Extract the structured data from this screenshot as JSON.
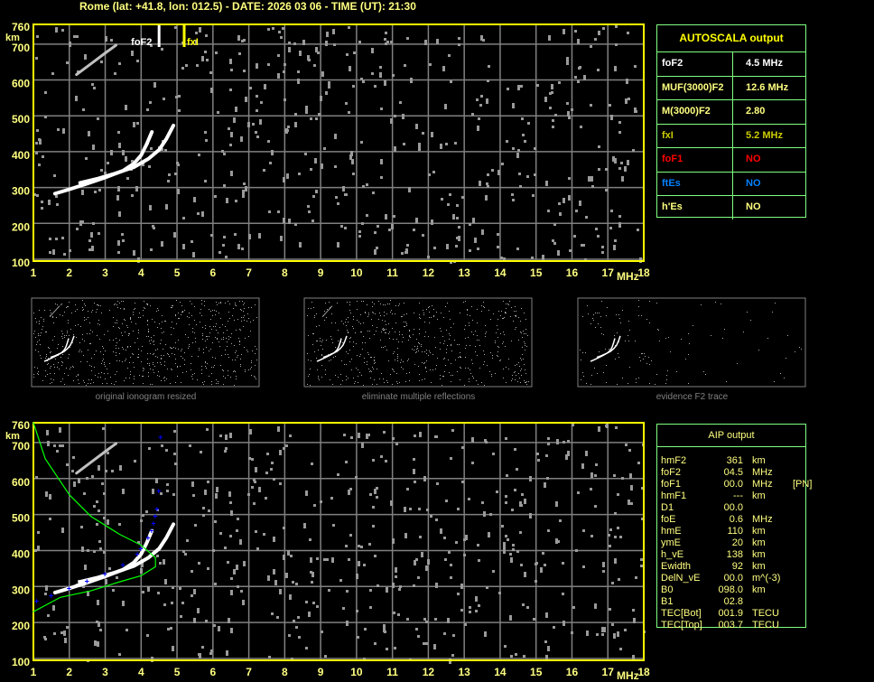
{
  "title": "Rome (lat: +41.8, lon: 012.5) - DATE: 2026 03 06 - TIME (UT): 21:30",
  "colors": {
    "axis": "#ffff00",
    "label": "#ffff80",
    "grid": "#808080",
    "trace": "#ffffff",
    "noise": "#9a9a9a",
    "profile": "#00ff00",
    "aip_points": "#0000ff",
    "table_border": "#80ff80",
    "foF1": "#ff0000",
    "ftEs": "#0080ff",
    "fxI": "#cccc00"
  },
  "autoscala": {
    "header": "AUTOSCALA output",
    "rows": [
      {
        "label": "foF2",
        "value": "4.5 MHz",
        "color": "#ffffff"
      },
      {
        "label": "MUF(3000)F2",
        "value": "12.6 MHz",
        "color": "#ffff80"
      },
      {
        "label": "M(3000)F2",
        "value": "2.80",
        "color": "#ffff80"
      },
      {
        "label": "fxI",
        "value": "5.2 MHz",
        "color": "#cccc00"
      },
      {
        "label": "foF1",
        "value": "NO",
        "color": "#ff0000"
      },
      {
        "label": "ftEs",
        "value": "NO",
        "color": "#0080ff"
      },
      {
        "label": "h'Es",
        "value": "NO",
        "color": "#ffff80"
      }
    ]
  },
  "aip": {
    "header": "AIP output",
    "rows": [
      {
        "name": "hmF2",
        "value": "361",
        "unit": "km",
        "extra": ""
      },
      {
        "name": "foF2",
        "value": "04.5",
        "unit": "MHz",
        "extra": ""
      },
      {
        "name": "foF1",
        "value": "00.0",
        "unit": "MHz",
        "extra": "[PN]"
      },
      {
        "name": "hmF1",
        "value": "---",
        "unit": "km",
        "extra": ""
      },
      {
        "name": "D1",
        "value": "00.0",
        "unit": "",
        "extra": ""
      },
      {
        "name": "foE",
        "value": "0.6",
        "unit": "MHz",
        "extra": ""
      },
      {
        "name": "hmE",
        "value": "110",
        "unit": "km",
        "extra": ""
      },
      {
        "name": "ymE",
        "value": "20",
        "unit": "km",
        "extra": ""
      },
      {
        "name": "h_vE",
        "value": "138",
        "unit": "km",
        "extra": ""
      },
      {
        "name": "Ewidth",
        "value": "92",
        "unit": "km",
        "extra": ""
      },
      {
        "name": "DelN_vE",
        "value": "00.0",
        "unit": "m^(-3)",
        "extra": ""
      },
      {
        "name": "B0",
        "value": "098.0",
        "unit": "km",
        "extra": ""
      },
      {
        "name": "B1",
        "value": "02.8",
        "unit": "",
        "extra": ""
      },
      {
        "name": "TEC[Bot]",
        "value": "001.9",
        "unit": "TECU",
        "extra": ""
      },
      {
        "name": "TEC[Top]",
        "value": "003.7",
        "unit": "TECU",
        "extra": ""
      }
    ]
  },
  "thumbnails": [
    {
      "caption": "original ionogram resized"
    },
    {
      "caption": "eliminate multiple reflections"
    },
    {
      "caption": "evidence F2 trace"
    }
  ],
  "chart_data": [
    {
      "type": "scatter",
      "xlabel": "MHz",
      "ylabel": "km",
      "xlim": [
        1,
        18
      ],
      "ylim": [
        100,
        760
      ],
      "xticks": [
        "1",
        "2",
        "3",
        "4",
        "5",
        "6",
        "7",
        "8",
        "9",
        "10",
        "11",
        "12",
        "13",
        "14",
        "15",
        "16",
        "17",
        "18"
      ],
      "yticks": [
        "760",
        "700",
        "600",
        "500",
        "400",
        "300",
        "200",
        "100"
      ],
      "grid": true,
      "markers": [
        {
          "label": "foF2",
          "x": 4.5
        },
        {
          "label": "fxI",
          "x": 5.2
        }
      ],
      "traces": [
        {
          "x": [
            1.6,
            2.0,
            2.5,
            3.0,
            3.5,
            3.8,
            4.0,
            4.15,
            4.3
          ],
          "y": [
            288,
            300,
            316,
            333,
            352,
            372,
            395,
            425,
            460
          ]
        },
        {
          "x": [
            2.3,
            2.8,
            3.3,
            3.8,
            4.2,
            4.5,
            4.7,
            4.9
          ],
          "y": [
            318,
            330,
            345,
            362,
            385,
            410,
            440,
            478
          ]
        },
        {
          "x": [
            2.2,
            2.6,
            3.0,
            3.3
          ],
          "y": [
            620,
            650,
            680,
            702
          ]
        }
      ]
    },
    {
      "type": "line",
      "xlabel": "MHz",
      "ylabel": "km",
      "xlim": [
        1,
        18
      ],
      "ylim": [
        100,
        760
      ],
      "xticks": [
        "1",
        "2",
        "3",
        "4",
        "5",
        "6",
        "7",
        "8",
        "9",
        "10",
        "11",
        "12",
        "13",
        "14",
        "15",
        "16",
        "17",
        "18"
      ],
      "yticks": [
        "760",
        "700",
        "600",
        "500",
        "400",
        "300",
        "200",
        "100"
      ],
      "grid": true,
      "profile": {
        "x": [
          1.0,
          1.33,
          2.0,
          2.6,
          3.4,
          4.0,
          4.4,
          4.4,
          4.0,
          3.4,
          2.6,
          1.75,
          1.0
        ],
        "y": [
          760,
          660,
          560,
          500,
          450,
          420,
          385,
          360,
          335,
          318,
          293,
          275,
          235
        ]
      },
      "aip_points": {
        "x": [
          1.1,
          1.5,
          2.0,
          2.5,
          3.0,
          3.5,
          3.9,
          4.0,
          4.2,
          4.3,
          4.35,
          4.4,
          4.45,
          4.5,
          4.55
        ],
        "y": [
          265,
          280,
          300,
          320,
          340,
          365,
          395,
          410,
          440,
          460,
          480,
          500,
          520,
          570,
          720
        ]
      }
    }
  ]
}
